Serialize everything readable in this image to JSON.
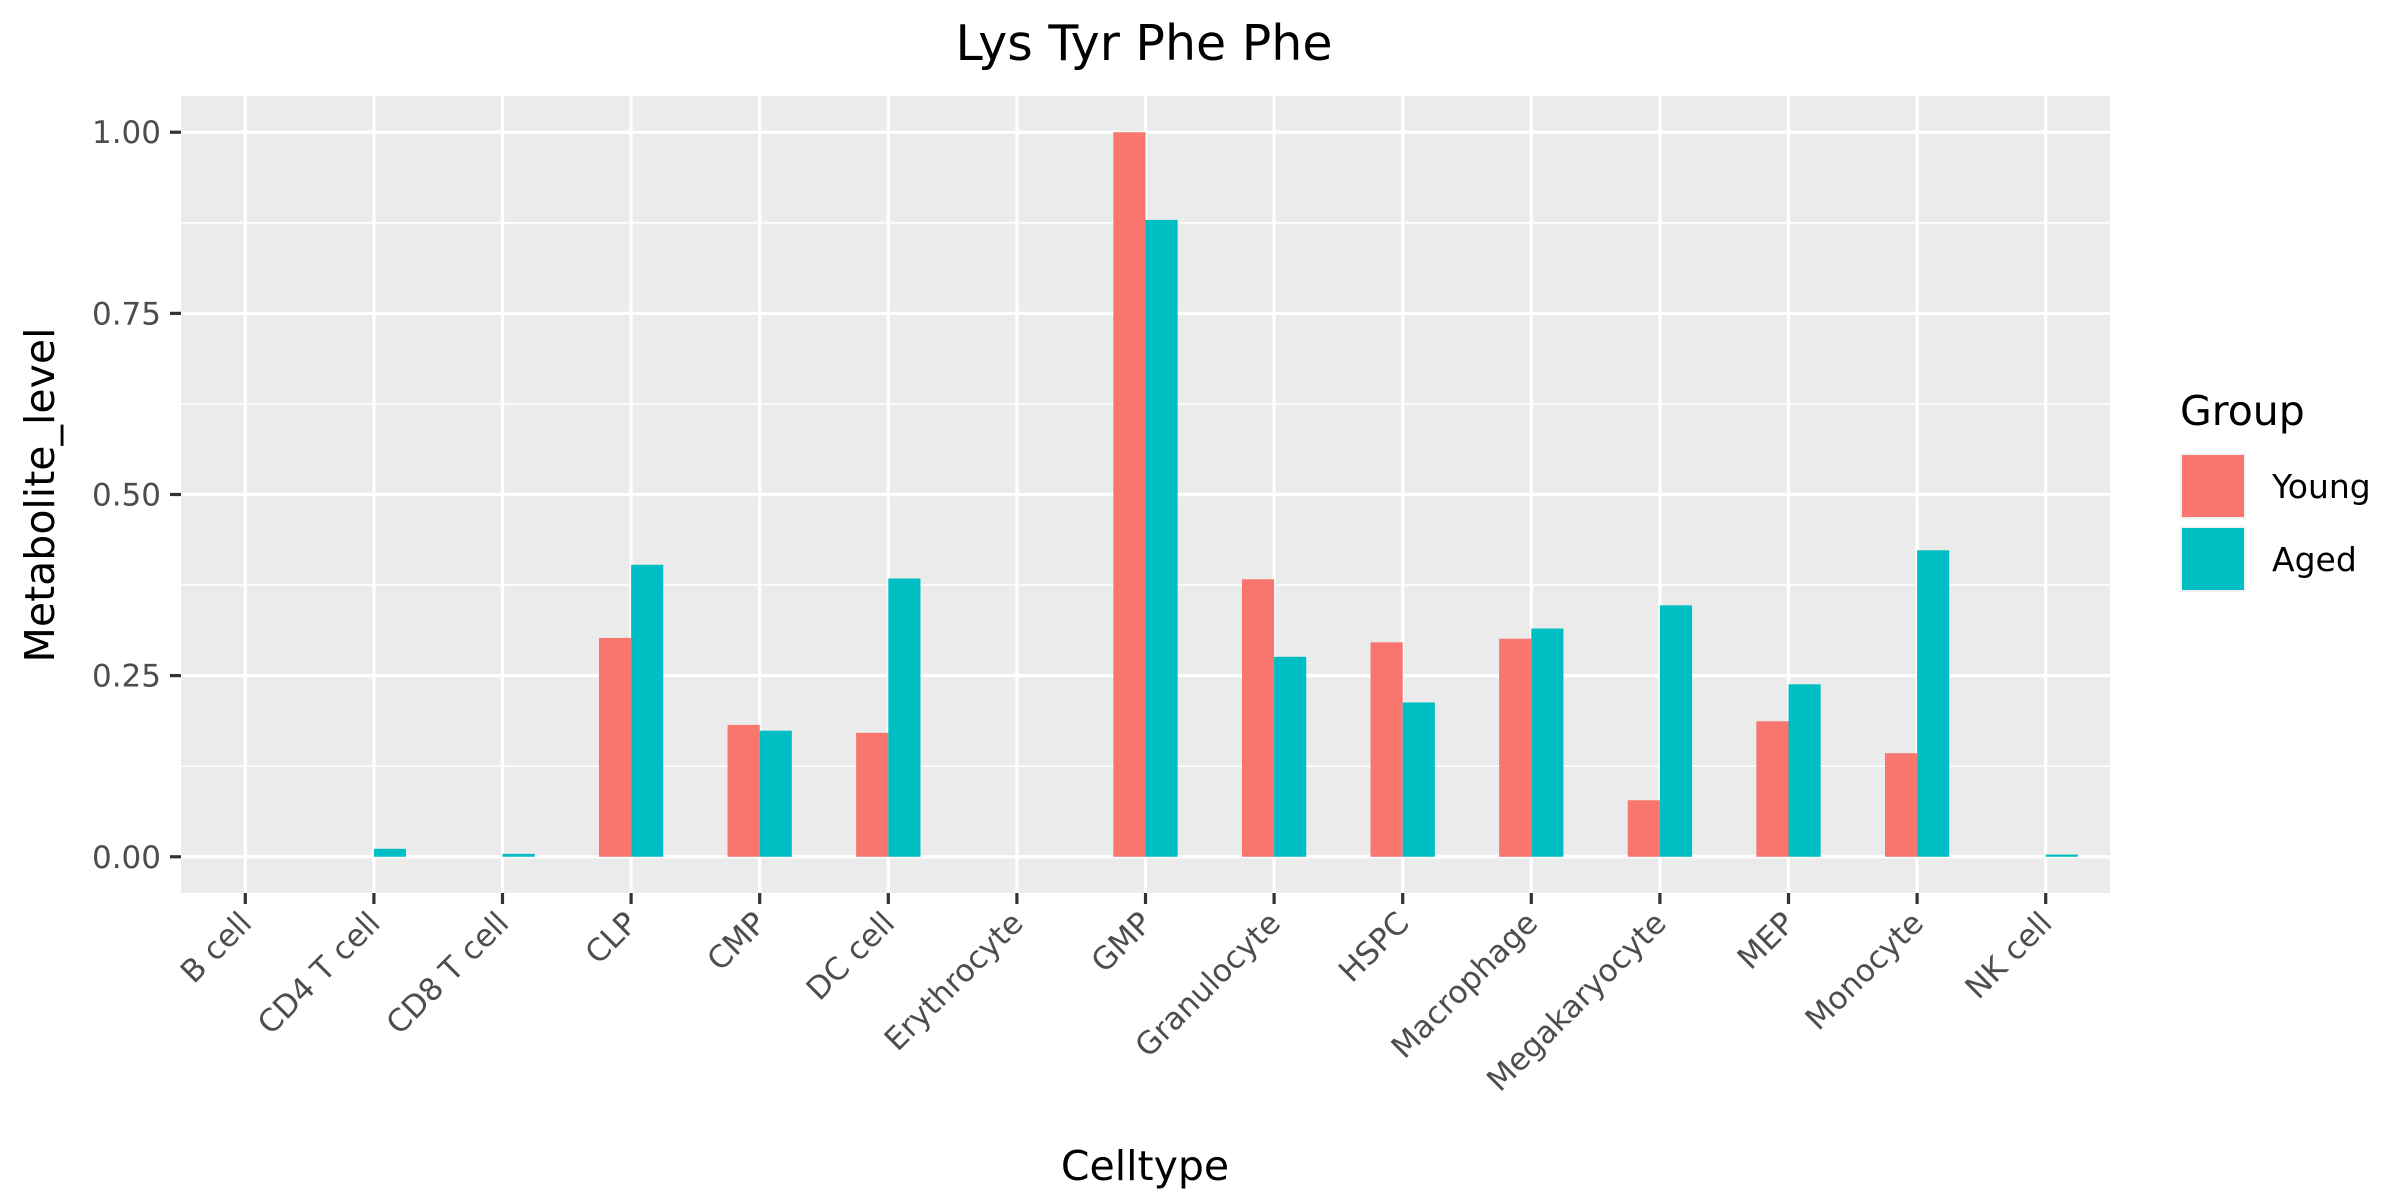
{
  "chart_data": {
    "type": "bar",
    "title": "Lys Tyr Phe Phe",
    "xlabel": "Celltype",
    "ylabel": "Metabolite_level",
    "ylim": [
      -0.05,
      1.05
    ],
    "yticks": [
      0.0,
      0.25,
      0.5,
      0.75,
      1.0
    ],
    "ytick_labels": [
      "0.00",
      "0.25",
      "0.50",
      "0.75",
      "1.00"
    ],
    "grid": true,
    "legend_position": "right",
    "legend_title": "Group",
    "categories": [
      "B cell",
      "CD4 T cell",
      "CD8 T cell",
      "CLP",
      "CMP",
      "DC cell",
      "Erythrocyte",
      "GMP",
      "Granulocyte",
      "HSPC",
      "Macrophage",
      "Megakaryocyte",
      "MEP",
      "Monocyte",
      "NK cell"
    ],
    "series": [
      {
        "name": "Young",
        "color": "#F8766D",
        "values": [
          0,
          0,
          0,
          0.302,
          0.182,
          0.171,
          0,
          1.0,
          0.383,
          0.296,
          0.301,
          0.078,
          0.187,
          0.143,
          0
        ]
      },
      {
        "name": "Aged",
        "color": "#00BFC4",
        "values": [
          0,
          0.011,
          0.004,
          0.403,
          0.174,
          0.384,
          0,
          0.879,
          0.276,
          0.213,
          0.315,
          0.347,
          0.238,
          0.423,
          0.003
        ]
      }
    ]
  },
  "colors": {
    "panel_background": "#EBEBEB",
    "grid": "#FFFFFF",
    "tick_text": "#4D4D4D",
    "tick_mark": "#333333"
  }
}
